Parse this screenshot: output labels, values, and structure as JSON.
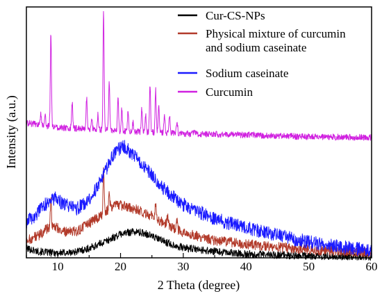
{
  "chart_data": {
    "type": "line",
    "title": "",
    "xlabel": "2 Theta (degree)",
    "ylabel": "Intensity (a.u.)",
    "xlim": [
      5,
      60
    ],
    "xticks": [
      "10",
      "20",
      "30",
      "40",
      "50",
      "60"
    ],
    "yticks_shown": false,
    "grid": false,
    "legend_position": "top-right",
    "legend_entries": [
      [
        "Cur-CS-NPs"
      ],
      [
        "Physical mixture of curcumin",
        "and sodium caseinate"
      ],
      [
        "Sodium caseinate"
      ],
      [
        "Curcumin"
      ]
    ],
    "series": [
      {
        "name": "Cur-CS-NPs",
        "color": "#000000",
        "noise": 1.2,
        "points": [
          [
            5,
            1.5
          ],
          [
            7,
            1.0
          ],
          [
            9,
            0.8
          ],
          [
            12,
            0.8
          ],
          [
            15,
            1.5
          ],
          [
            18,
            2.8
          ],
          [
            20,
            3.8
          ],
          [
            22,
            4.2
          ],
          [
            24,
            3.9
          ],
          [
            26,
            3.0
          ],
          [
            28,
            2.2
          ],
          [
            30,
            1.6
          ],
          [
            35,
            1.0
          ],
          [
            40,
            0.6
          ],
          [
            50,
            0.3
          ],
          [
            60,
            0.2
          ]
        ],
        "peaks": []
      },
      {
        "name": "Physical mixture of curcumin and sodium caseinate",
        "color": "#b23a2a",
        "noise": 1.6,
        "points": [
          [
            5,
            2.8
          ],
          [
            7,
            3.6
          ],
          [
            8.5,
            4.8
          ],
          [
            9.5,
            5.0
          ],
          [
            11,
            4.2
          ],
          [
            13,
            4.2
          ],
          [
            15,
            5.5
          ],
          [
            17,
            6.8
          ],
          [
            19,
            8.5
          ],
          [
            21,
            8.2
          ],
          [
            23,
            7.5
          ],
          [
            25,
            6.7
          ],
          [
            27,
            5.5
          ],
          [
            30,
            4.0
          ],
          [
            35,
            2.8
          ],
          [
            40,
            2.2
          ],
          [
            50,
            1.3
          ],
          [
            60,
            0.8
          ]
        ],
        "peaks": [
          [
            8.9,
            4.5
          ],
          [
            17.3,
            7.0
          ],
          [
            18.2,
            2.5
          ],
          [
            25.6,
            2.5
          ],
          [
            27.5,
            1.5
          ],
          [
            29.0,
            1.5
          ]
        ]
      },
      {
        "name": "Sodium caseinate",
        "color": "#1a1aff",
        "noise": 2.2,
        "points": [
          [
            5,
            5.8
          ],
          [
            6.5,
            6.8
          ],
          [
            8,
            8.5
          ],
          [
            9.5,
            9.5
          ],
          [
            11,
            8.5
          ],
          [
            13,
            7.8
          ],
          [
            15,
            9.2
          ],
          [
            17,
            12.5
          ],
          [
            19,
            16.8
          ],
          [
            20.5,
            17.8
          ],
          [
            22,
            16.5
          ],
          [
            24,
            14.2
          ],
          [
            26,
            12.0
          ],
          [
            28,
            10.0
          ],
          [
            30,
            8.5
          ],
          [
            35,
            6.2
          ],
          [
            40,
            4.8
          ],
          [
            45,
            3.6
          ],
          [
            50,
            2.5
          ],
          [
            55,
            1.7
          ],
          [
            60,
            1.2
          ]
        ],
        "peaks": []
      },
      {
        "name": "Curcumin",
        "color": "#d020e0",
        "noise": 1.0,
        "points": [
          [
            5,
            21.5
          ],
          [
            10,
            20.8
          ],
          [
            20,
            20.2
          ],
          [
            30,
            19.8
          ],
          [
            40,
            19.6
          ],
          [
            50,
            19.3
          ],
          [
            60,
            19.2
          ]
        ],
        "peaks": [
          [
            7.3,
            1.7
          ],
          [
            8.0,
            1.4
          ],
          [
            8.9,
            15.0
          ],
          [
            12.3,
            4.2
          ],
          [
            14.6,
            5.0
          ],
          [
            15.4,
            2.0
          ],
          [
            16.4,
            2.5
          ],
          [
            17.3,
            18.8
          ],
          [
            18.2,
            7.5
          ],
          [
            19.6,
            5.0
          ],
          [
            20.2,
            3.5
          ],
          [
            21.2,
            3.3
          ],
          [
            22.0,
            1.5
          ],
          [
            23.4,
            3.8
          ],
          [
            24.0,
            3.0
          ],
          [
            24.7,
            7.5
          ],
          [
            25.6,
            6.8
          ],
          [
            26.1,
            4.5
          ],
          [
            27.0,
            3.0
          ],
          [
            27.8,
            3.0
          ],
          [
            29.0,
            2.0
          ],
          [
            31.8,
            0.9
          ]
        ]
      }
    ]
  }
}
